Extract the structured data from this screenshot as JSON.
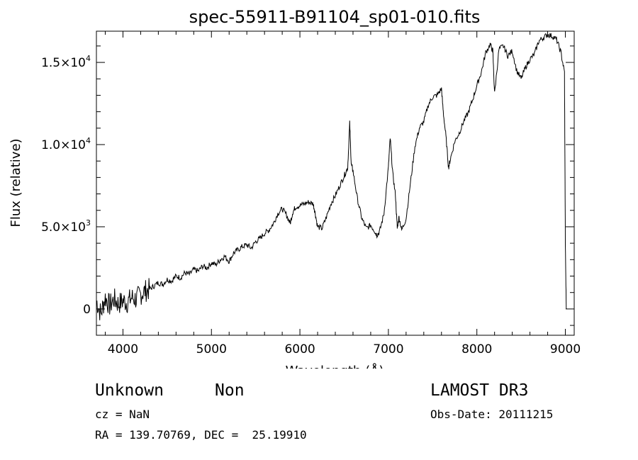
{
  "chart_data": {
    "type": "line",
    "title": "spec-55911-B91104_sp01-010.fits",
    "xlabel": "Wavelength (Å)",
    "ylabel": "Flux (relative)",
    "xlim": [
      3700,
      9100
    ],
    "ylim": [
      -1600,
      16900
    ],
    "x_ticks": [
      {
        "value": 4000,
        "label": "4000"
      },
      {
        "value": 5000,
        "label": "5000"
      },
      {
        "value": 6000,
        "label": "6000"
      },
      {
        "value": 7000,
        "label": "7000"
      },
      {
        "value": 8000,
        "label": "8000"
      },
      {
        "value": 9000,
        "label": "9000"
      }
    ],
    "y_ticks": [
      {
        "value": 0,
        "base": "0",
        "exp": ""
      },
      {
        "value": 5000,
        "base": "5.0×10",
        "exp": "3"
      },
      {
        "value": 10000,
        "base": "1.0×10",
        "exp": "4"
      },
      {
        "value": 15000,
        "base": "1.5×10",
        "exp": "4"
      }
    ],
    "grid": false,
    "series": [
      {
        "line_color": "#000000",
        "x": [
          3700,
          3750,
          3800,
          3850,
          3900,
          3950,
          4000,
          4050,
          4100,
          4150,
          4200,
          4250,
          4300,
          4350,
          4400,
          4450,
          4500,
          4550,
          4600,
          4650,
          4700,
          4750,
          4800,
          4850,
          4900,
          4950,
          5000,
          5050,
          5100,
          5150,
          5200,
          5250,
          5300,
          5350,
          5400,
          5450,
          5500,
          5550,
          5600,
          5650,
          5700,
          5750,
          5800,
          5850,
          5890,
          5920,
          5950,
          6000,
          6050,
          6100,
          6150,
          6170,
          6200,
          6250,
          6300,
          6350,
          6400,
          6450,
          6500,
          6540,
          6563,
          6580,
          6600,
          6650,
          6700,
          6750,
          6800,
          6850,
          6870,
          6900,
          6950,
          7000,
          7020,
          7050,
          7080,
          7100,
          7120,
          7150,
          7200,
          7250,
          7300,
          7350,
          7400,
          7450,
          7500,
          7550,
          7600,
          7620,
          7650,
          7680,
          7700,
          7750,
          7800,
          7850,
          7900,
          7950,
          8000,
          8050,
          8100,
          8150,
          8180,
          8200,
          8250,
          8300,
          8350,
          8400,
          8450,
          8500,
          8550,
          8600,
          8650,
          8700,
          8750,
          8800,
          8850,
          8900,
          8950,
          8990,
          9000,
          9010
        ],
        "y": [
          500,
          -300,
          700,
          200,
          600,
          300,
          500,
          400,
          700,
          600,
          900,
          1100,
          1200,
          1400,
          1600,
          1500,
          1800,
          1700,
          2000,
          1900,
          2200,
          2100,
          2400,
          2300,
          2600,
          2500,
          2800,
          2700,
          3000,
          3200,
          2900,
          3400,
          3600,
          3800,
          3900,
          3700,
          4100,
          4300,
          4600,
          4800,
          5200,
          5800,
          6100,
          5700,
          5200,
          5900,
          6200,
          6300,
          6400,
          6500,
          6400,
          5900,
          5000,
          4900,
          5600,
          6400,
          6900,
          7500,
          8100,
          8600,
          11300,
          8800,
          8400,
          6700,
          5500,
          4900,
          5100,
          4700,
          4500,
          4700,
          5800,
          8600,
          10400,
          8200,
          6900,
          4900,
          5600,
          4800,
          5500,
          7700,
          9900,
          11000,
          11400,
          12400,
          12900,
          13000,
          13400,
          12000,
          10500,
          8600,
          9100,
          10200,
          10700,
          11400,
          11900,
          12700,
          13600,
          14400,
          15600,
          16100,
          15700,
          13100,
          15800,
          16000,
          15400,
          15700,
          14500,
          14000,
          14700,
          15200,
          15500,
          16300,
          16500,
          16700,
          16600,
          16400,
          15600,
          14400,
          4000,
          0
        ]
      }
    ]
  },
  "info": {
    "class_text": "Unknown",
    "subclass_text": "Non",
    "survey": "LAMOST DR3",
    "cz": "cz = NaN",
    "obs_date": "Obs-Date: 20111215",
    "coords": "RA = 139.70769, DEC =  25.19910"
  }
}
